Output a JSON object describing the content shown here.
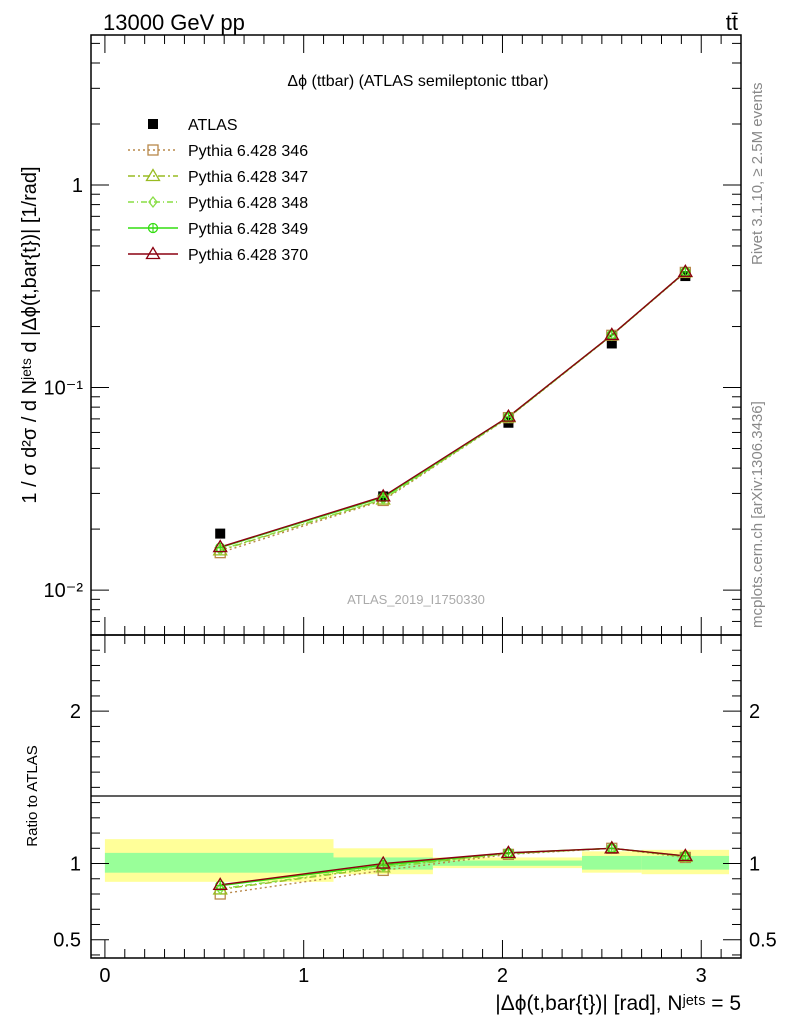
{
  "header": {
    "left": "13000 GeV pp",
    "right": "tt̄"
  },
  "side_text": {
    "top": "Rivet 3.1.10, ≥ 2.5M events",
    "bottom": "mcplots.cern.ch [arXiv:1306.3436]"
  },
  "watermark": "ATLAS_2019_I1750330",
  "chart_data": [
    {
      "type": "line",
      "title": "Δϕ (ttbar) (ATLAS semileptonic ttbar)",
      "ylabel": "1 / σ d²σ / d Nʲᵉᵗˢ d |Δϕ(t,bar{t})| [1/rad]",
      "yscale": "log",
      "ylim": [
        0.006,
        5.5
      ],
      "xlim": [
        -0.07,
        3.2
      ],
      "y_ticks": [
        {
          "value": 0.01,
          "label": "10⁻²"
        },
        {
          "value": 0.1,
          "label": "10⁻¹"
        },
        {
          "value": 1,
          "label": "1"
        }
      ],
      "legend_position": "top-left",
      "x": [
        0.58,
        1.4,
        2.03,
        2.55,
        2.92
      ],
      "series": [
        {
          "name": "ATLAS",
          "marker": "filled-square",
          "color": "#000000",
          "values": [
            0.019,
            0.029,
            0.067,
            0.165,
            0.355
          ]
        },
        {
          "name": "Pythia 6.428 346",
          "marker": "open-square",
          "color": "#b8884a",
          "dash": "2,3",
          "values": [
            0.0153,
            0.0277,
            0.071,
            0.181,
            0.37
          ]
        },
        {
          "name": "Pythia 6.428 347",
          "marker": "open-triangle",
          "color": "#99bb22",
          "dash": "7,3,2,3",
          "values": [
            0.0157,
            0.028,
            0.0712,
            0.1812,
            0.371
          ]
        },
        {
          "name": "Pythia 6.428 348",
          "marker": "open-diamond",
          "color": "#88dd44",
          "dash": "6,3,1,3",
          "values": [
            0.0158,
            0.0281,
            0.0713,
            0.1813,
            0.3715
          ]
        },
        {
          "name": "Pythia 6.428 349",
          "marker": "open-circle-cross",
          "color": "#33dd11",
          "dash": "",
          "values": [
            0.0162,
            0.0287,
            0.0716,
            0.1816,
            0.372
          ]
        },
        {
          "name": "Pythia 6.428 370",
          "marker": "open-triangle",
          "color": "#8b0010",
          "dash": "",
          "values": [
            0.0163,
            0.029,
            0.0718,
            0.1818,
            0.3725
          ]
        }
      ]
    },
    {
      "type": "line",
      "ylabel": "Ratio to ATLAS",
      "xlabel": "|Δϕ(t,bar{t})| [rad], Nʲᵉᵗˢ = 5",
      "ylim": [
        0.38,
        2.5
      ],
      "xlim": [
        -0.07,
        3.2
      ],
      "y_ticks": [
        {
          "value": 0.5,
          "label": "0.5"
        },
        {
          "value": 1,
          "label": "1"
        },
        {
          "value": 2,
          "label": "2"
        }
      ],
      "x_ticks": [
        {
          "value": 0,
          "label": "0"
        },
        {
          "value": 1,
          "label": "1"
        },
        {
          "value": 2,
          "label": "2"
        },
        {
          "value": 3,
          "label": "3"
        }
      ],
      "reference_line": 1,
      "uncertainty_bands": [
        {
          "x_low": 0.0,
          "x_high": 1.15,
          "inner": [
            0.94,
            1.07
          ],
          "outer": [
            0.88,
            1.16
          ]
        },
        {
          "x_low": 1.15,
          "x_high": 1.65,
          "inner": [
            0.96,
            1.04
          ],
          "outer": [
            0.93,
            1.1
          ]
        },
        {
          "x_low": 1.65,
          "x_high": 2.4,
          "inner": [
            0.985,
            1.02
          ],
          "outer": [
            0.97,
            1.04
          ]
        },
        {
          "x_low": 2.4,
          "x_high": 2.7,
          "inner": [
            0.96,
            1.05
          ],
          "outer": [
            0.94,
            1.08
          ]
        },
        {
          "x_low": 2.7,
          "x_high": 3.14,
          "inner": [
            0.96,
            1.05
          ],
          "outer": [
            0.93,
            1.09
          ]
        }
      ],
      "x": [
        0.58,
        1.4,
        2.03,
        2.55,
        2.92
      ],
      "series": [
        {
          "name": "Pythia 6.428 346",
          "values": [
            0.8,
            0.955,
            1.06,
            1.1,
            1.04
          ]
        },
        {
          "name": "Pythia 6.428 347",
          "values": [
            0.83,
            0.975,
            1.065,
            1.1,
            1.045
          ]
        },
        {
          "name": "Pythia 6.428 348",
          "values": [
            0.835,
            0.98,
            1.065,
            1.1,
            1.045
          ]
        },
        {
          "name": "Pythia 6.428 349",
          "values": [
            0.855,
            0.99,
            1.07,
            1.1,
            1.05
          ]
        },
        {
          "name": "Pythia 6.428 370",
          "values": [
            0.86,
            1.0,
            1.07,
            1.1,
            1.05
          ]
        }
      ]
    }
  ]
}
